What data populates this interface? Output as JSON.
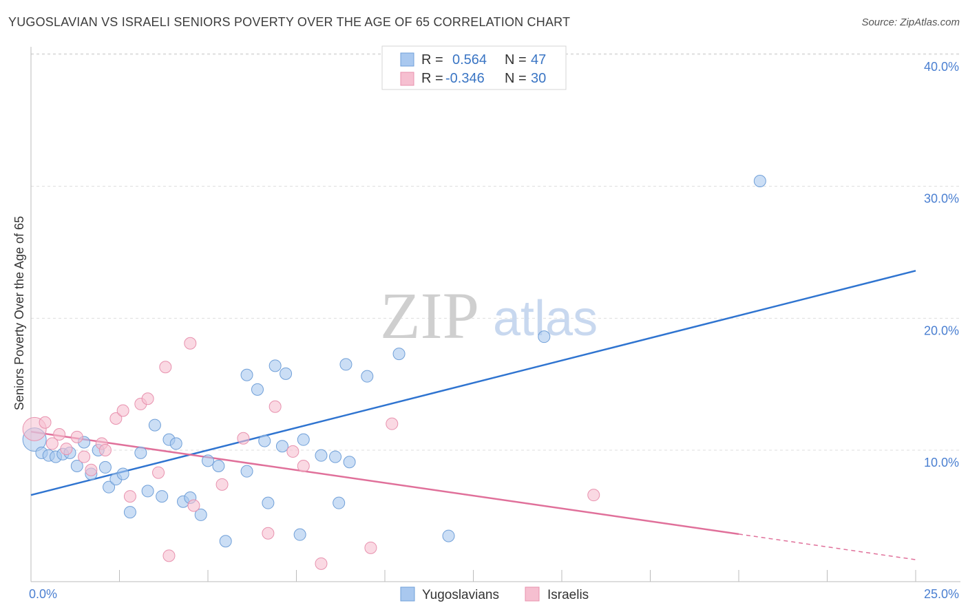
{
  "title": "YUGOSLAVIAN VS ISRAELI SENIORS POVERTY OVER THE AGE OF 65 CORRELATION CHART",
  "source": "Source: ZipAtlas.com",
  "watermark": {
    "zip": "ZIP",
    "atlas": "atlas"
  },
  "legend_top": {
    "rows": [
      {
        "r_label": "R =",
        "r_value": "0.564",
        "n_label": "N =",
        "n_value": "47"
      },
      {
        "r_label": "R =",
        "r_value": "-0.346",
        "n_label": "N =",
        "n_value": "30"
      }
    ]
  },
  "colors": {
    "blue_fill": "#a9c8ef",
    "blue_stroke": "#6f9fd8",
    "blue_line": "#2f74d0",
    "pink_fill": "#f6bfd0",
    "pink_stroke": "#e891ae",
    "pink_line": "#e0709a",
    "tick_text": "#4a7fd1"
  },
  "chart_data": {
    "type": "scatter",
    "title": "YUGOSLAVIAN VS ISRAELI SENIORS POVERTY OVER THE AGE OF 65 CORRELATION CHART",
    "xlabel": "",
    "ylabel": "Seniors Poverty Over the Age of 65",
    "xlim": [
      0,
      25
    ],
    "ylim": [
      0,
      40
    ],
    "x_tick_labels": [
      "0.0%",
      "25.0%"
    ],
    "y_ticks": [
      10,
      20,
      30,
      40
    ],
    "y_tick_labels": [
      "10.0%",
      "20.0%",
      "30.0%",
      "40.0%"
    ],
    "grid": true,
    "legend": "bottom-center",
    "series": [
      {
        "name": "Yugoslavians",
        "color": "#a9c8ef",
        "r": "0.564",
        "n": "47",
        "trend": {
          "x": [
            0,
            25
          ],
          "y": [
            6.6,
            23.6
          ],
          "dashed_from": null
        },
        "points": [
          [
            0.1,
            10.8
          ],
          [
            0.3,
            9.8
          ],
          [
            0.5,
            9.6
          ],
          [
            0.7,
            9.5
          ],
          [
            0.9,
            9.7
          ],
          [
            1.1,
            9.8
          ],
          [
            1.3,
            8.8
          ],
          [
            1.5,
            10.6
          ],
          [
            1.7,
            8.2
          ],
          [
            1.9,
            10.0
          ],
          [
            2.1,
            8.7
          ],
          [
            2.2,
            7.2
          ],
          [
            2.4,
            7.8
          ],
          [
            2.6,
            8.2
          ],
          [
            2.8,
            5.3
          ],
          [
            3.1,
            9.8
          ],
          [
            3.3,
            6.9
          ],
          [
            3.5,
            11.9
          ],
          [
            3.7,
            6.5
          ],
          [
            3.9,
            10.8
          ],
          [
            4.1,
            10.5
          ],
          [
            4.3,
            6.1
          ],
          [
            4.5,
            6.4
          ],
          [
            4.8,
            5.1
          ],
          [
            5.0,
            9.2
          ],
          [
            5.3,
            8.8
          ],
          [
            5.5,
            3.1
          ],
          [
            6.1,
            8.4
          ],
          [
            6.1,
            15.7
          ],
          [
            6.4,
            14.6
          ],
          [
            6.6,
            10.7
          ],
          [
            6.7,
            6.0
          ],
          [
            6.9,
            16.4
          ],
          [
            7.1,
            10.3
          ],
          [
            7.2,
            15.8
          ],
          [
            7.6,
            3.6
          ],
          [
            7.7,
            10.8
          ],
          [
            8.2,
            9.6
          ],
          [
            8.6,
            9.5
          ],
          [
            8.7,
            6.0
          ],
          [
            8.9,
            16.5
          ],
          [
            9.0,
            9.1
          ],
          [
            9.5,
            15.6
          ],
          [
            10.4,
            17.3
          ],
          [
            11.8,
            3.5
          ],
          [
            14.5,
            18.6
          ],
          [
            20.6,
            30.4
          ]
        ]
      },
      {
        "name": "Israelis",
        "color": "#f6bfd0",
        "r": "-0.346",
        "n": "30",
        "trend": {
          "x": [
            0,
            25
          ],
          "y": [
            11.4,
            1.7
          ],
          "dashed_from": 20
        },
        "points": [
          [
            0.1,
            11.6
          ],
          [
            0.4,
            12.1
          ],
          [
            0.6,
            10.5
          ],
          [
            0.8,
            11.2
          ],
          [
            1.0,
            10.1
          ],
          [
            1.3,
            11.0
          ],
          [
            1.5,
            9.5
          ],
          [
            1.7,
            8.5
          ],
          [
            2.0,
            10.5
          ],
          [
            2.1,
            10.0
          ],
          [
            2.4,
            12.4
          ],
          [
            2.6,
            13.0
          ],
          [
            2.8,
            6.5
          ],
          [
            3.1,
            13.5
          ],
          [
            3.3,
            13.9
          ],
          [
            3.6,
            8.3
          ],
          [
            3.8,
            16.3
          ],
          [
            3.9,
            2.0
          ],
          [
            4.5,
            18.1
          ],
          [
            4.6,
            5.8
          ],
          [
            5.4,
            7.4
          ],
          [
            6.0,
            10.9
          ],
          [
            6.7,
            3.7
          ],
          [
            6.9,
            13.3
          ],
          [
            7.4,
            9.9
          ],
          [
            7.7,
            8.8
          ],
          [
            8.2,
            1.4
          ],
          [
            9.6,
            2.6
          ],
          [
            10.2,
            12.0
          ],
          [
            15.9,
            6.6
          ]
        ]
      }
    ]
  }
}
